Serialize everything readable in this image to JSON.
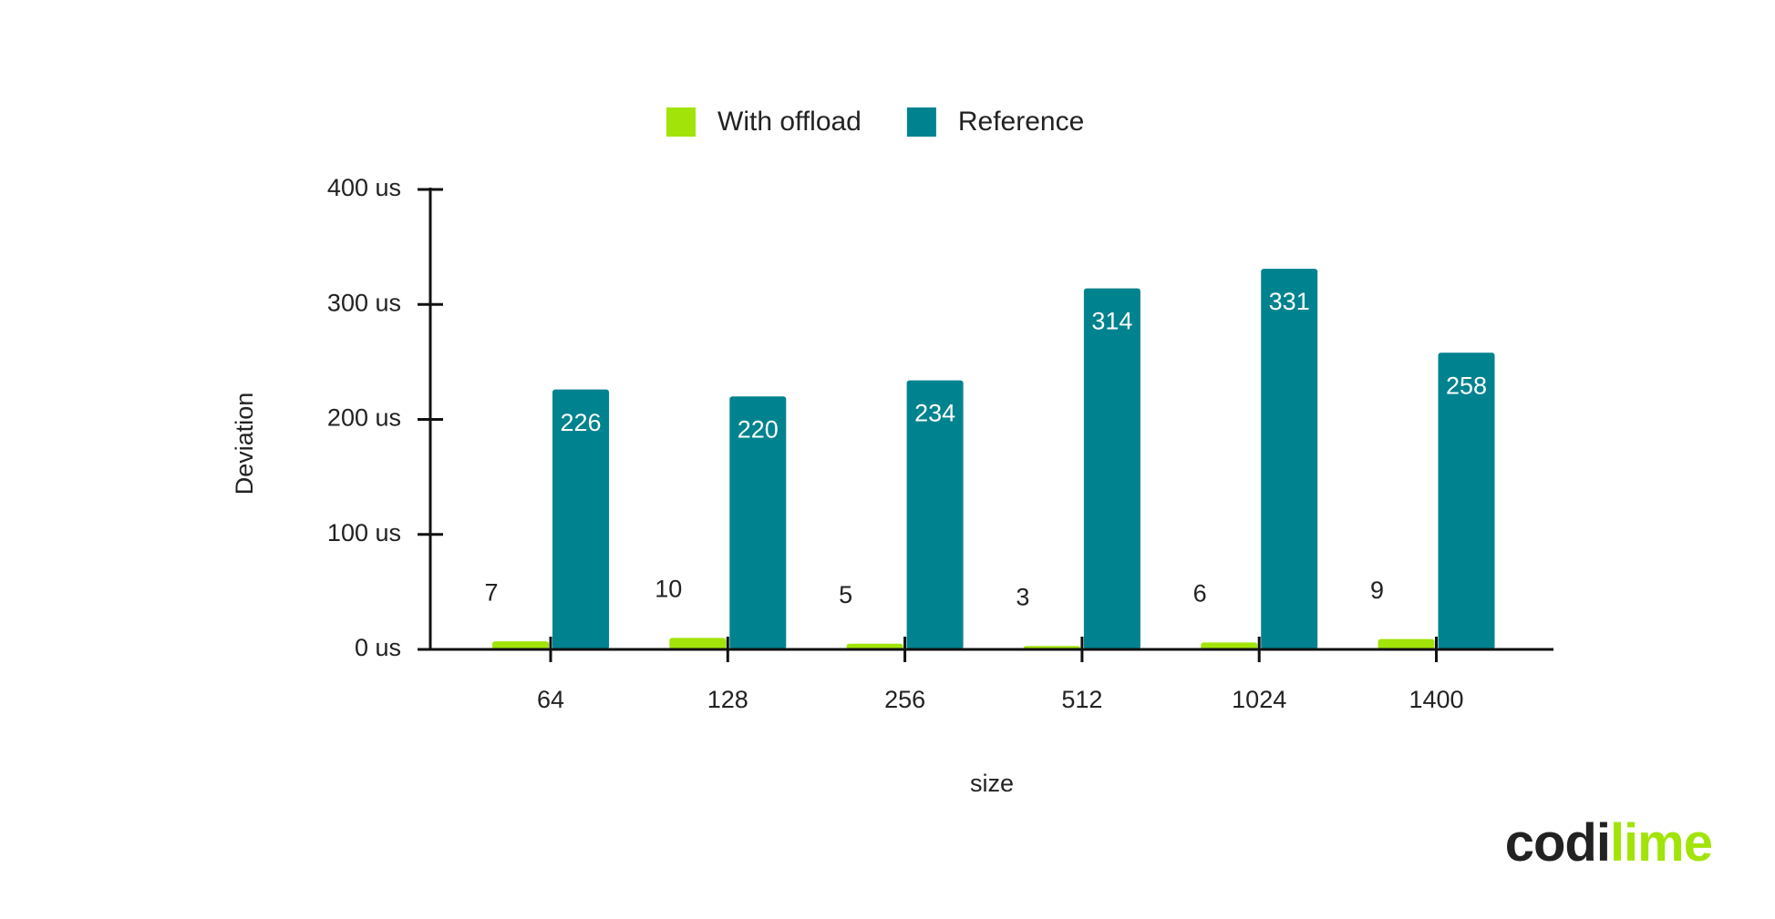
{
  "chart_data": {
    "type": "bar",
    "categories": [
      "64",
      "128",
      "256",
      "512",
      "1024",
      "1400"
    ],
    "series": [
      {
        "name": "With offload",
        "color": "#a2e40a",
        "values": [
          7,
          10,
          5,
          3,
          6,
          9
        ]
      },
      {
        "name": "Reference",
        "color": "#00838f",
        "values": [
          226,
          220,
          234,
          314,
          331,
          258
        ]
      }
    ],
    "ylim": [
      0,
      400
    ],
    "yticks": [
      {
        "value": 0,
        "label": "0 us"
      },
      {
        "value": 100,
        "label": "100 us"
      },
      {
        "value": 200,
        "label": "200 us"
      },
      {
        "value": 300,
        "label": "300 us"
      },
      {
        "value": 400,
        "label": "400 us"
      }
    ],
    "y_label": "Deviation",
    "x_label": "size",
    "legend": "top"
  },
  "logo": [
    "codi",
    "lime"
  ]
}
